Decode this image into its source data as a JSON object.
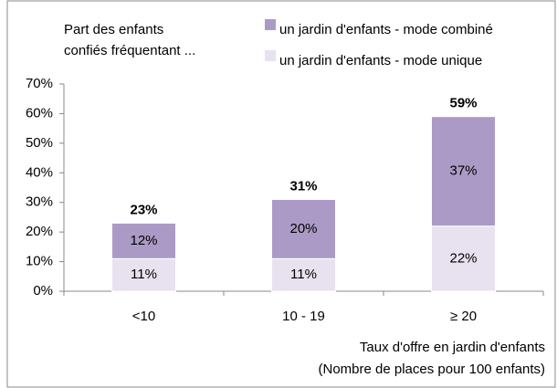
{
  "chart_data": {
    "type": "stacked-bar",
    "title_lines": [
      "Part des enfants",
      "confiés fréquentant ..."
    ],
    "x_label_lines": [
      "Taux d'offre en jardin d'enfants",
      "(Nombre de places pour 100 enfants)"
    ],
    "categories": [
      "<10",
      "10 - 19",
      "≥ 20"
    ],
    "series": [
      {
        "name": "un jardin d'enfants - mode unique",
        "color": "#e8e1ef",
        "values": [
          11,
          11,
          22
        ],
        "value_labels": [
          "11%",
          "11%",
          "22%"
        ]
      },
      {
        "name": "un jardin d'enfants - mode combiné",
        "color": "#ab9ac6",
        "values": [
          12,
          20,
          37
        ],
        "value_labels": [
          "12%",
          "20%",
          "37%"
        ]
      }
    ],
    "totals": {
      "values": [
        23,
        31,
        59
      ],
      "value_labels": [
        "23%",
        "31%",
        "59%"
      ]
    },
    "ylim": [
      0,
      70
    ],
    "yticks": [
      {
        "value": 0,
        "label": "0%"
      },
      {
        "value": 10,
        "label": "10%"
      },
      {
        "value": 20,
        "label": "20%"
      },
      {
        "value": 30,
        "label": "30%"
      },
      {
        "value": 40,
        "label": "40%"
      },
      {
        "value": 50,
        "label": "50%"
      },
      {
        "value": 60,
        "label": "60%"
      },
      {
        "value": 70,
        "label": "70%"
      }
    ],
    "legend": "top-right"
  }
}
